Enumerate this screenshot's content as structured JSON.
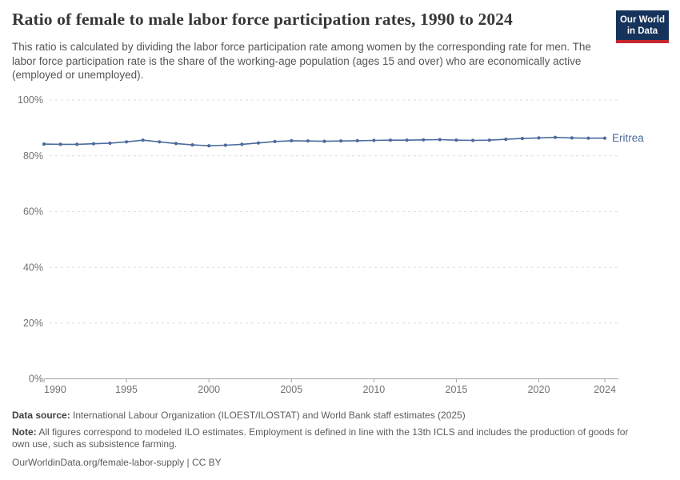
{
  "header": {
    "title": "Ratio of female to male labor force participation rates, 1990 to 2024",
    "logo": {
      "line1": "Our World",
      "line2": "in Data"
    }
  },
  "subtitle": "This ratio is calculated by dividing the labor force participation rate among women by the corresponding rate for men. The labor force participation rate is the share of the working-age population (ages 15 and over) who are economically active (employed or unemployed).",
  "chart_data": {
    "type": "line",
    "title": "Ratio of female to male labor force participation rates, 1990 to 2024",
    "xlabel": "",
    "ylabel": "",
    "xlim": [
      1990,
      2024
    ],
    "ylim": [
      0,
      100
    ],
    "x_ticks": [
      1990,
      1995,
      2000,
      2005,
      2010,
      2015,
      2020,
      2024
    ],
    "y_ticks": [
      0,
      20,
      40,
      60,
      80,
      100
    ],
    "y_tick_suffix": "%",
    "grid": "dashed-horizontal",
    "legend_position": "end-of-line-label",
    "series": [
      {
        "name": "Eritrea",
        "color": "#4c6a9c",
        "x": [
          1990,
          1991,
          1992,
          1993,
          1994,
          1995,
          1996,
          1997,
          1998,
          1999,
          2000,
          2001,
          2002,
          2003,
          2004,
          2005,
          2006,
          2007,
          2008,
          2009,
          2010,
          2011,
          2012,
          2013,
          2014,
          2015,
          2016,
          2017,
          2018,
          2019,
          2020,
          2021,
          2022,
          2023,
          2024
        ],
        "values": [
          84.2,
          84.1,
          84.1,
          84.3,
          84.5,
          85.0,
          85.6,
          85.0,
          84.4,
          83.9,
          83.6,
          83.8,
          84.1,
          84.6,
          85.1,
          85.4,
          85.3,
          85.2,
          85.3,
          85.4,
          85.5,
          85.6,
          85.6,
          85.7,
          85.8,
          85.6,
          85.5,
          85.6,
          85.9,
          86.2,
          86.4,
          86.6,
          86.4,
          86.3,
          86.3
        ]
      }
    ]
  },
  "footer": {
    "data_source_label": "Data source:",
    "data_source_text": " International Labour Organization (ILOEST/ILOSTAT) and World Bank staff estimates (2025)",
    "note_label": "Note:",
    "note_text": " All figures correspond to modeled ILO estimates. Employment is defined in line with the 13th ICLS and includes the production of goods for own use, such as subsistence farming.",
    "citation": "OurWorldinData.org/female-labor-supply | CC BY"
  },
  "colors": {
    "line": "#4c6a9c",
    "grid": "#dcdcdc",
    "axis": "#a3a3a3",
    "tick_text": "#717171",
    "logo_navy": "#16335b",
    "logo_red": "#c5252f"
  }
}
